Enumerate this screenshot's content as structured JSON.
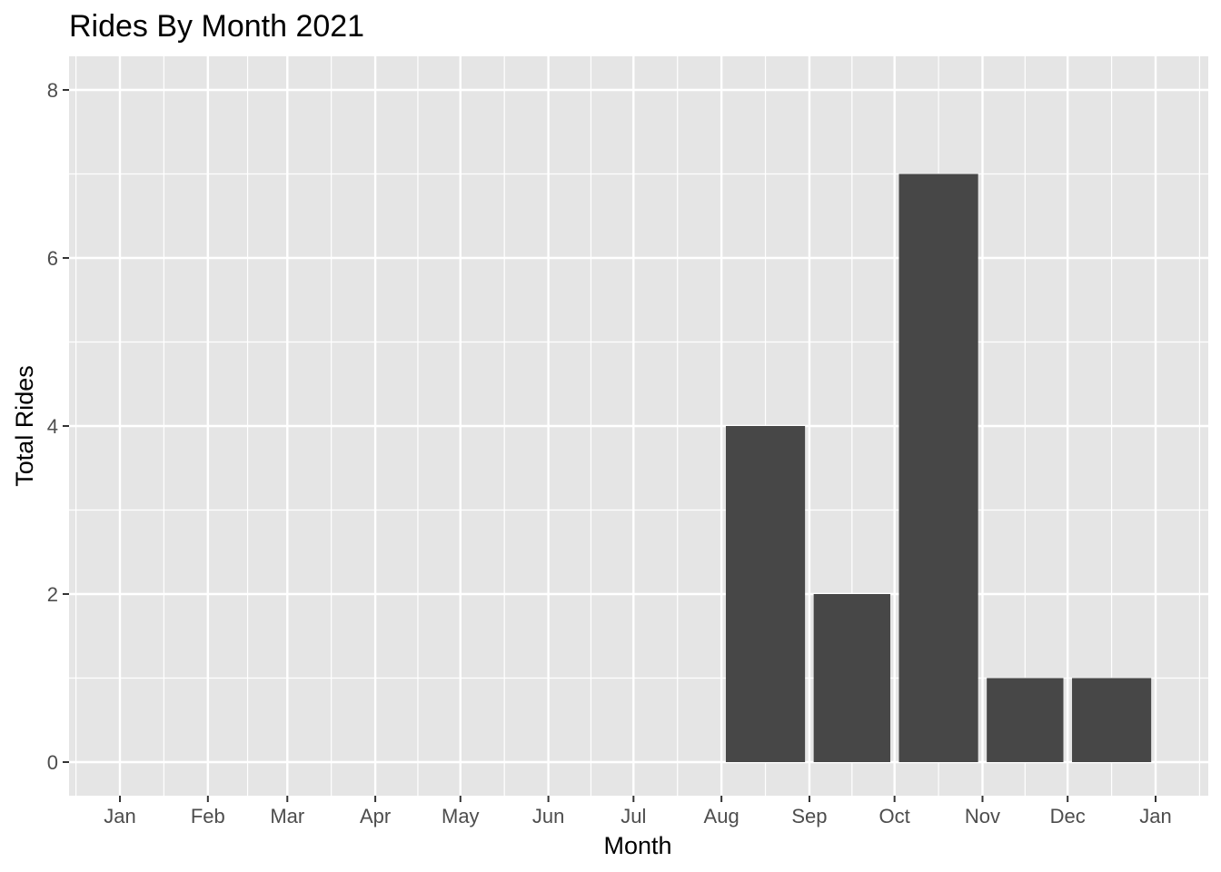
{
  "chart_data": {
    "type": "bar",
    "title": "Rides By Month 2021",
    "xlabel": "Month",
    "ylabel": "Total Rides",
    "x_tick_labels": [
      "Jan",
      "Feb",
      "Mar",
      "Apr",
      "May",
      "Jun",
      "Jul",
      "Aug",
      "Sep",
      "Oct",
      "Nov",
      "Dec",
      "Jan"
    ],
    "x_ticks": [
      "2021-01",
      "2021-02",
      "2021-03",
      "2021-04",
      "2021-05",
      "2021-06",
      "2021-07",
      "2021-08",
      "2021-09",
      "2021-10",
      "2021-11",
      "2021-12",
      "2022-01"
    ],
    "categories": [
      "2021-08",
      "2021-09",
      "2021-10",
      "2021-11",
      "2021-12"
    ],
    "values": [
      4,
      2,
      7,
      1,
      1
    ],
    "y_ticks": [
      0,
      2,
      4,
      6,
      8
    ],
    "ylim": [
      0,
      8
    ],
    "grid": true,
    "legend": "none",
    "colors": {
      "panel": "#e5e5e5",
      "bar": "#474747",
      "grid": "#ffffff",
      "tick": "#333333",
      "tick_label": "#4d4d4d"
    }
  }
}
